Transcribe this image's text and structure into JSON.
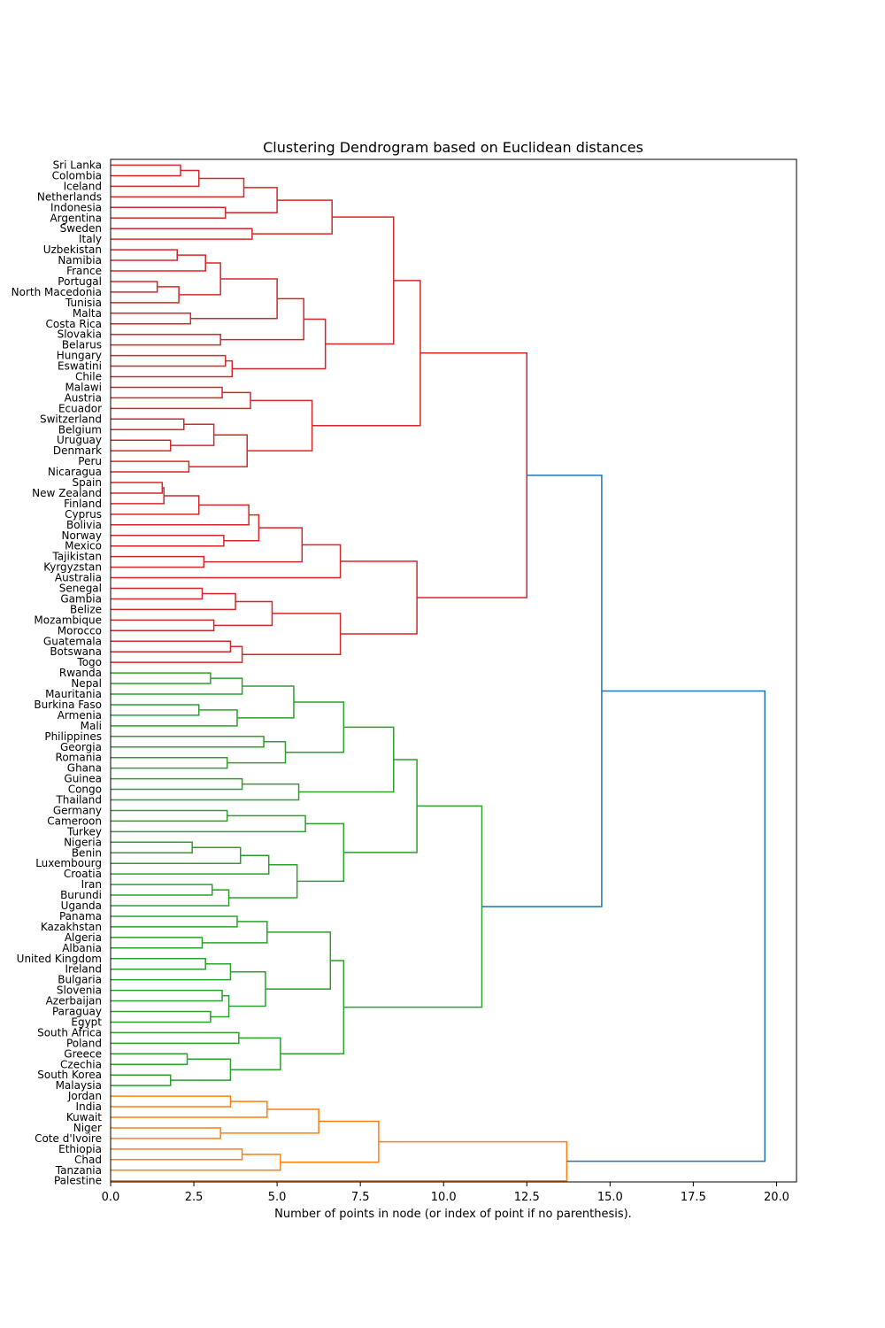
{
  "chart_data": {
    "type": "dendrogram",
    "orientation": "right",
    "title": "Clustering Dendrogram based on Euclidean distances",
    "xlabel": "Number of points in node (or index of point if no parenthesis).",
    "xlim": [
      0,
      20.6
    ],
    "xticks": [
      "0.0",
      "2.5",
      "5.0",
      "7.5",
      "10.0",
      "12.5",
      "15.0",
      "17.5",
      "20.0"
    ],
    "xtick_values": [
      0,
      2.5,
      5,
      7.5,
      10,
      12.5,
      15,
      17.5,
      20
    ],
    "leaves": [
      "Sri Lanka",
      "Colombia",
      "Iceland",
      "Netherlands",
      "Indonesia",
      "Argentina",
      "Sweden",
      "Italy",
      "Uzbekistan",
      "Namibia",
      "France",
      "Portugal",
      "North Macedonia",
      "Tunisia",
      "Malta",
      "Costa Rica",
      "Slovakia",
      "Belarus",
      "Hungary",
      "Eswatini",
      "Chile",
      "Malawi",
      "Austria",
      "Ecuador",
      "Switzerland",
      "Belgium",
      "Uruguay",
      "Denmark",
      "Peru",
      "Nicaragua",
      "Spain",
      "New Zealand",
      "Finland",
      "Cyprus",
      "Bolivia",
      "Norway",
      "Mexico",
      "Tajikistan",
      "Kyrgyzstan",
      "Australia",
      "Senegal",
      "Gambia",
      "Belize",
      "Mozambique",
      "Morocco",
      "Guatemala",
      "Botswana",
      "Togo",
      "Rwanda",
      "Nepal",
      "Mauritania",
      "Burkina Faso",
      "Armenia",
      "Mali",
      "Philippines",
      "Georgia",
      "Romania",
      "Ghana",
      "Guinea",
      "Congo",
      "Thailand",
      "Germany",
      "Cameroon",
      "Turkey",
      "Nigeria",
      "Benin",
      "Luxembourg",
      "Croatia",
      "Iran",
      "Burundi",
      "Uganda",
      "Panama",
      "Kazakhstan",
      "Algeria",
      "Albania",
      "United Kingdom",
      "Ireland",
      "Bulgaria",
      "Slovenia",
      "Azerbaijan",
      "Paraguay",
      "Egypt",
      "South Africa",
      "Poland",
      "Greece",
      "Czechia",
      "South Korea",
      "Malaysia",
      "Jordan",
      "India",
      "Kuwait",
      "Niger",
      "Cote d'Ivoire",
      "Ethiopia",
      "Chad",
      "Tanzania",
      "Palestine"
    ],
    "colors": {
      "red": "#d62728",
      "green": "#2ca02c",
      "orange": "#ff7f0e",
      "blue": "#1f77b4"
    },
    "merges": [
      {
        "a": 0,
        "b": 1,
        "h": 2.1,
        "c": "red"
      },
      {
        "a": 97,
        "b": 2,
        "h": 2.65,
        "c": "red"
      },
      {
        "a": 4,
        "b": 5,
        "h": 3.45,
        "c": "red"
      },
      {
        "a": 98,
        "b": 3,
        "h": 4.0,
        "c": "red"
      },
      {
        "a": 99,
        "b": 100,
        "h": 5.0,
        "c": "red"
      },
      {
        "a": 6,
        "b": 7,
        "h": 4.25,
        "c": "red"
      },
      {
        "a": 101,
        "b": 102,
        "h": 6.65,
        "c": "red"
      },
      {
        "a": 8,
        "b": 9,
        "h": 2.0,
        "c": "red"
      },
      {
        "a": 104,
        "b": 10,
        "h": 2.85,
        "c": "red"
      },
      {
        "a": 11,
        "b": 12,
        "h": 1.4,
        "c": "red"
      },
      {
        "a": 106,
        "b": 13,
        "h": 2.05,
        "c": "red"
      },
      {
        "a": 105,
        "b": 107,
        "h": 3.3,
        "c": "red"
      },
      {
        "a": 14,
        "b": 15,
        "h": 2.4,
        "c": "red"
      },
      {
        "a": 108,
        "b": 109,
        "h": 5.0,
        "c": "red"
      },
      {
        "a": 16,
        "b": 17,
        "h": 3.3,
        "c": "red"
      },
      {
        "a": 110,
        "b": 111,
        "h": 5.8,
        "c": "red"
      },
      {
        "a": 18,
        "b": 19,
        "h": 3.45,
        "c": "red"
      },
      {
        "a": 113,
        "b": 20,
        "h": 3.65,
        "c": "red"
      },
      {
        "a": 112,
        "b": 114,
        "h": 6.45,
        "c": "red"
      },
      {
        "a": 103,
        "b": 115,
        "h": 8.5,
        "c": "red"
      },
      {
        "a": 21,
        "b": 22,
        "h": 3.35,
        "c": "red"
      },
      {
        "a": 117,
        "b": 23,
        "h": 4.2,
        "c": "red"
      },
      {
        "a": 24,
        "b": 25,
        "h": 2.2,
        "c": "red"
      },
      {
        "a": 26,
        "b": 27,
        "h": 1.8,
        "c": "red"
      },
      {
        "a": 119,
        "b": 120,
        "h": 3.1,
        "c": "red"
      },
      {
        "a": 28,
        "b": 29,
        "h": 2.35,
        "c": "red"
      },
      {
        "a": 121,
        "b": 122,
        "h": 4.1,
        "c": "red"
      },
      {
        "a": 118,
        "b": 123,
        "h": 6.05,
        "c": "red"
      },
      {
        "a": 116,
        "b": 124,
        "h": 9.3,
        "c": "red"
      },
      {
        "a": 30,
        "b": 31,
        "h": 1.55,
        "c": "red"
      },
      {
        "a": 126,
        "b": 32,
        "h": 1.6,
        "c": "red"
      },
      {
        "a": 127,
        "b": 33,
        "h": 2.65,
        "c": "red"
      },
      {
        "a": 128,
        "b": 34,
        "h": 4.15,
        "c": "red"
      },
      {
        "a": 35,
        "b": 36,
        "h": 3.4,
        "c": "red"
      },
      {
        "a": 129,
        "b": 130,
        "h": 4.45,
        "c": "red"
      },
      {
        "a": 37,
        "b": 38,
        "h": 2.8,
        "c": "red"
      },
      {
        "a": 131,
        "b": 132,
        "h": 5.75,
        "c": "red"
      },
      {
        "a": 133,
        "b": 39,
        "h": 6.9,
        "c": "red"
      },
      {
        "a": 40,
        "b": 41,
        "h": 2.75,
        "c": "red"
      },
      {
        "a": 135,
        "b": 42,
        "h": 3.75,
        "c": "red"
      },
      {
        "a": 43,
        "b": 44,
        "h": 3.1,
        "c": "red"
      },
      {
        "a": 136,
        "b": 137,
        "h": 4.85,
        "c": "red"
      },
      {
        "a": 45,
        "b": 46,
        "h": 3.6,
        "c": "red"
      },
      {
        "a": 139,
        "b": 47,
        "h": 3.95,
        "c": "red"
      },
      {
        "a": 138,
        "b": 140,
        "h": 6.9,
        "c": "red"
      },
      {
        "a": 134,
        "b": 141,
        "h": 9.2,
        "c": "red"
      },
      {
        "a": 125,
        "b": 142,
        "h": 12.5,
        "c": "red"
      },
      {
        "a": 48,
        "b": 49,
        "h": 3.0,
        "c": "green"
      },
      {
        "a": 144,
        "b": 50,
        "h": 3.95,
        "c": "green"
      },
      {
        "a": 51,
        "b": 52,
        "h": 2.65,
        "c": "green"
      },
      {
        "a": 146,
        "b": 53,
        "h": 3.8,
        "c": "green"
      },
      {
        "a": 145,
        "b": 147,
        "h": 5.5,
        "c": "green"
      },
      {
        "a": 54,
        "b": 55,
        "h": 4.6,
        "c": "green"
      },
      {
        "a": 56,
        "b": 57,
        "h": 3.5,
        "c": "green"
      },
      {
        "a": 149,
        "b": 150,
        "h": 5.25,
        "c": "green"
      },
      {
        "a": 148,
        "b": 151,
        "h": 7.0,
        "c": "green"
      },
      {
        "a": 58,
        "b": 59,
        "h": 3.95,
        "c": "green"
      },
      {
        "a": 153,
        "b": 60,
        "h": 5.65,
        "c": "green"
      },
      {
        "a": 152,
        "b": 154,
        "h": 8.5,
        "c": "green"
      },
      {
        "a": 61,
        "b": 62,
        "h": 3.5,
        "c": "green"
      },
      {
        "a": 156,
        "b": 63,
        "h": 5.85,
        "c": "green"
      },
      {
        "a": 64,
        "b": 65,
        "h": 2.45,
        "c": "green"
      },
      {
        "a": 158,
        "b": 66,
        "h": 3.9,
        "c": "green"
      },
      {
        "a": 159,
        "b": 67,
        "h": 4.75,
        "c": "green"
      },
      {
        "a": 68,
        "b": 69,
        "h": 3.05,
        "c": "green"
      },
      {
        "a": 161,
        "b": 70,
        "h": 3.55,
        "c": "green"
      },
      {
        "a": 160,
        "b": 162,
        "h": 5.6,
        "c": "green"
      },
      {
        "a": 157,
        "b": 163,
        "h": 7.0,
        "c": "green"
      },
      {
        "a": 155,
        "b": 164,
        "h": 9.2,
        "c": "green"
      },
      {
        "a": 71,
        "b": 72,
        "h": 3.8,
        "c": "green"
      },
      {
        "a": 73,
        "b": 74,
        "h": 2.75,
        "c": "green"
      },
      {
        "a": 166,
        "b": 167,
        "h": 4.7,
        "c": "green"
      },
      {
        "a": 75,
        "b": 76,
        "h": 2.85,
        "c": "green"
      },
      {
        "a": 169,
        "b": 77,
        "h": 3.6,
        "c": "green"
      },
      {
        "a": 78,
        "b": 79,
        "h": 3.35,
        "c": "green"
      },
      {
        "a": 80,
        "b": 81,
        "h": 3.0,
        "c": "green"
      },
      {
        "a": 171,
        "b": 172,
        "h": 3.55,
        "c": "green"
      },
      {
        "a": 170,
        "b": 173,
        "h": 4.65,
        "c": "green"
      },
      {
        "a": 168,
        "b": 174,
        "h": 6.6,
        "c": "green"
      },
      {
        "a": 82,
        "b": 83,
        "h": 3.85,
        "c": "green"
      },
      {
        "a": 84,
        "b": 85,
        "h": 2.3,
        "c": "green"
      },
      {
        "a": 86,
        "b": 87,
        "h": 1.8,
        "c": "green"
      },
      {
        "a": 177,
        "b": 178,
        "h": 3.6,
        "c": "green"
      },
      {
        "a": 176,
        "b": 179,
        "h": 5.1,
        "c": "green"
      },
      {
        "a": 175,
        "b": 180,
        "h": 7.0,
        "c": "green"
      },
      {
        "a": 165,
        "b": 181,
        "h": 11.15,
        "c": "green"
      },
      {
        "a": 143,
        "b": 182,
        "h": 14.75,
        "c": "blue"
      },
      {
        "a": 88,
        "b": 89,
        "h": 3.6,
        "c": "orange"
      },
      {
        "a": 184,
        "b": 90,
        "h": 4.7,
        "c": "orange"
      },
      {
        "a": 91,
        "b": 92,
        "h": 3.3,
        "c": "orange"
      },
      {
        "a": 185,
        "b": 186,
        "h": 6.25,
        "c": "orange"
      },
      {
        "a": 93,
        "b": 94,
        "h": 3.95,
        "c": "orange"
      },
      {
        "a": 188,
        "b": 95,
        "h": 5.1,
        "c": "orange"
      },
      {
        "a": 187,
        "b": 189,
        "h": 8.05,
        "c": "orange"
      },
      {
        "a": 190,
        "b": 96,
        "h": 13.7,
        "c": "orange"
      },
      {
        "a": 183,
        "b": 191,
        "h": 19.65,
        "c": "blue"
      }
    ]
  }
}
